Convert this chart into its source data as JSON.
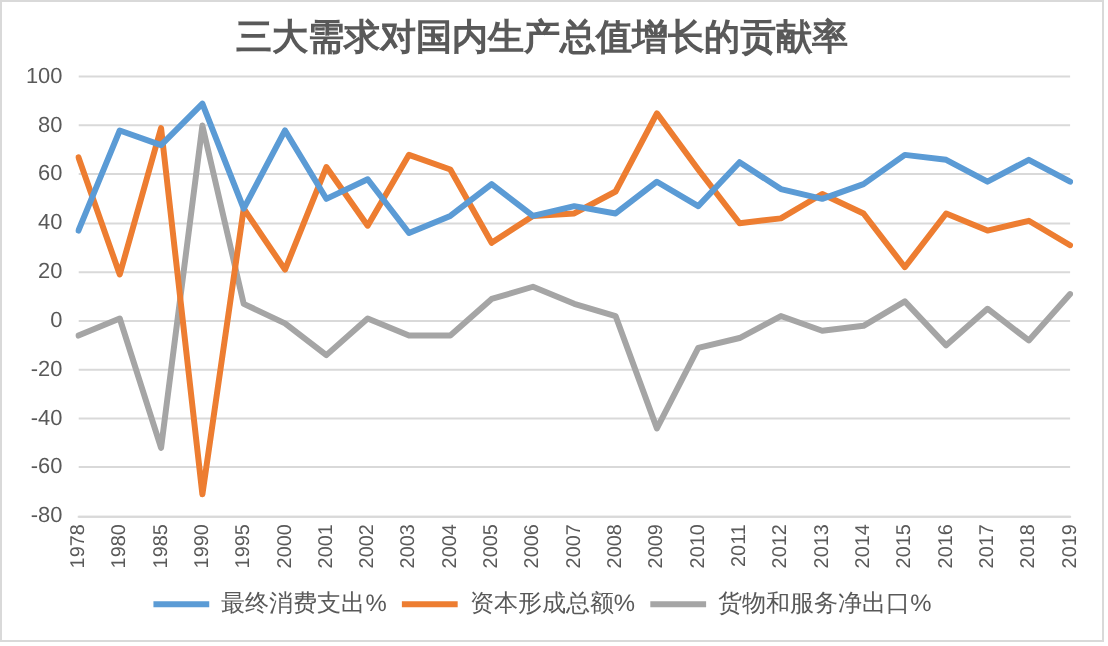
{
  "chart_data": {
    "type": "line",
    "title": "三大需求对国内生产总值增长的贡献率",
    "categories": [
      "1978",
      "1980",
      "1985",
      "1990",
      "1995",
      "2000",
      "2001",
      "2002",
      "2003",
      "2004",
      "2005",
      "2006",
      "2007",
      "2008",
      "2009",
      "2010",
      "2011",
      "2012",
      "2013",
      "2014",
      "2015",
      "2016",
      "2017",
      "2018",
      "2019"
    ],
    "series": [
      {
        "name": "最终消费支出%",
        "color": "#5b9bd5",
        "values": [
          37,
          78,
          72,
          89,
          46,
          78,
          50,
          58,
          36,
          43,
          56,
          43,
          47,
          44,
          57,
          47,
          65,
          54,
          50,
          56,
          68,
          66,
          57,
          66,
          57
        ]
      },
      {
        "name": "资本形成总额%",
        "color": "#ed7d31",
        "values": [
          67,
          19,
          79,
          -71,
          46,
          21,
          63,
          39,
          68,
          62,
          32,
          43,
          44,
          53,
          85,
          62,
          40,
          42,
          52,
          44,
          22,
          44,
          37,
          41,
          31
        ]
      },
      {
        "name": "货物和服务净出口%",
        "color": "#a5a5a5",
        "values": [
          -6,
          1,
          -52,
          80,
          7,
          -1,
          -14,
          1,
          -6,
          -6,
          9,
          14,
          7,
          2,
          -44,
          -11,
          -7,
          2,
          -4,
          -2,
          8,
          -10,
          5,
          -8,
          11
        ]
      }
    ],
    "ylim": [
      -80,
      100
    ],
    "yticks": [
      -80,
      -60,
      -40,
      -20,
      0,
      20,
      40,
      60,
      80,
      100
    ],
    "grid": "y",
    "legend": "bottom",
    "marker": "none",
    "line_style": "solid"
  }
}
